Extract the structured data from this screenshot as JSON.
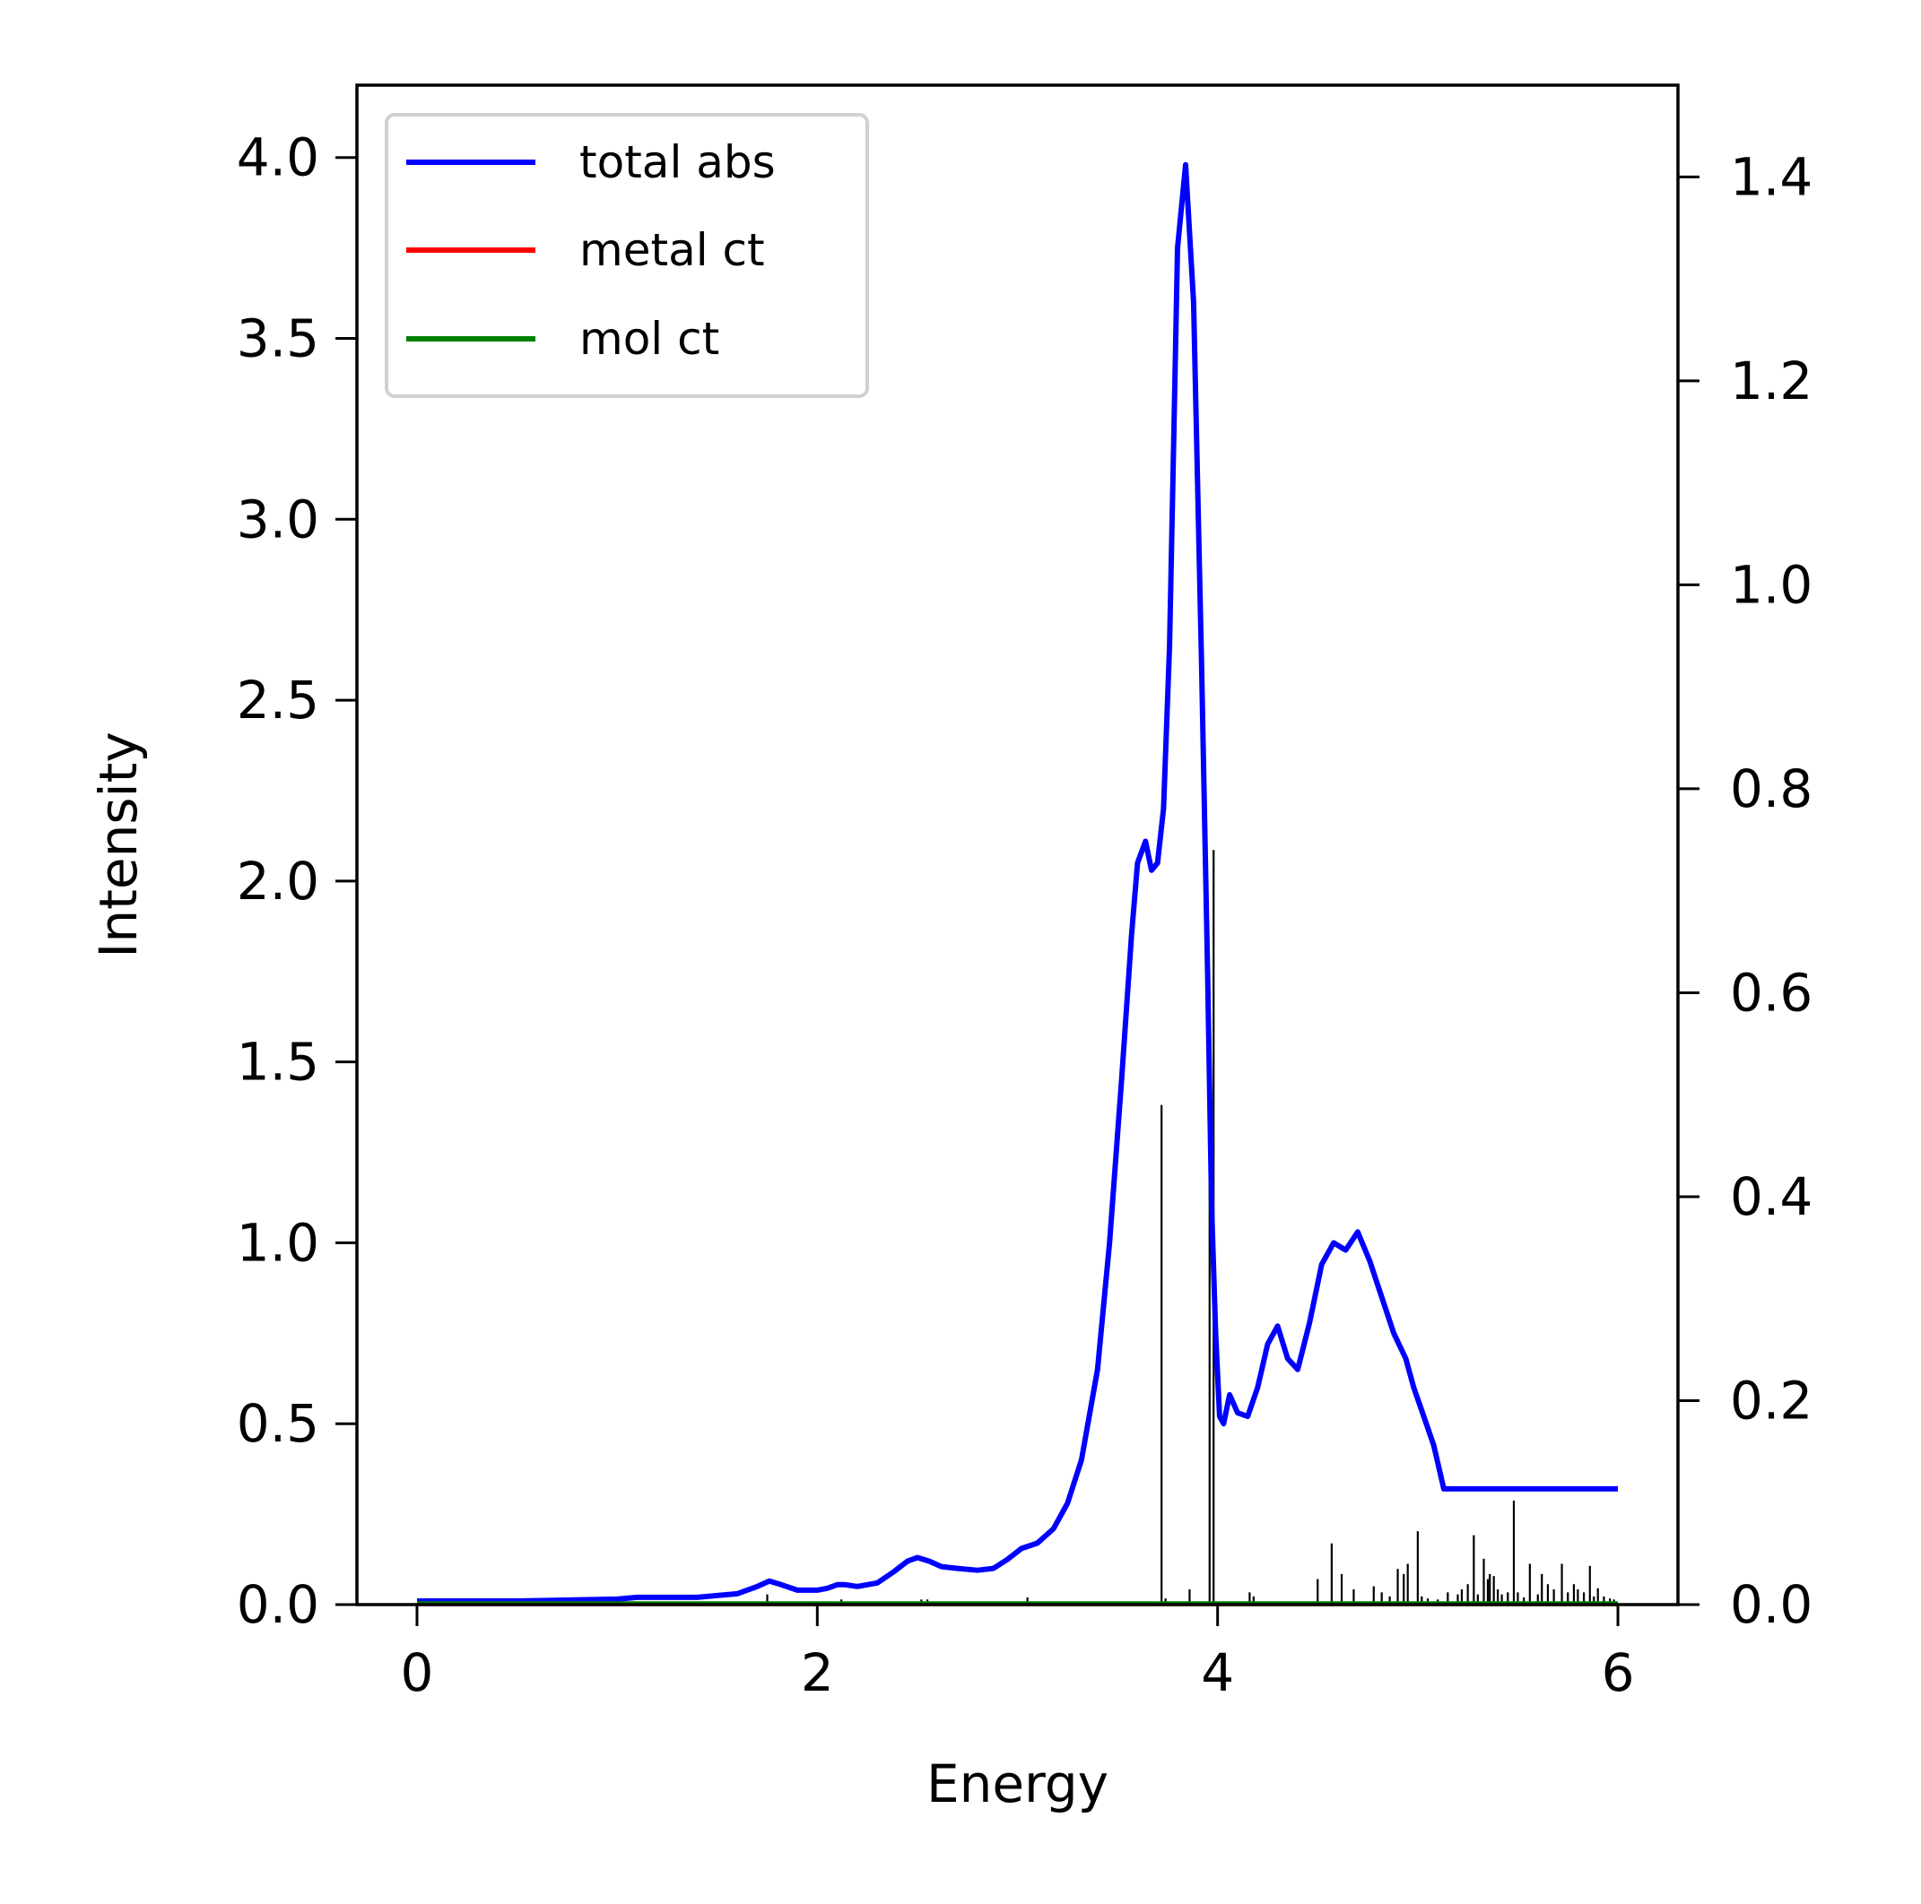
{
  "chart_data": {
    "type": "line",
    "xlabel": "Energy",
    "ylabel": "Intensity",
    "xlim": [
      -0.3,
      6.3
    ],
    "ylim": [
      0,
      4.2
    ],
    "y2lim": [
      0,
      1.49
    ],
    "xticks": [
      0,
      2,
      4,
      6
    ],
    "xtick_labels": [
      "0",
      "2",
      "4",
      "6"
    ],
    "yticks": [
      0,
      0.5,
      1.0,
      1.5,
      2.0,
      2.5,
      3.0,
      3.5,
      4.0
    ],
    "ytick_labels": [
      "0.0",
      "0.5",
      "1.0",
      "1.5",
      "2.0",
      "2.5",
      "3.0",
      "3.5",
      "4.0"
    ],
    "y2ticks": [
      0,
      0.2,
      0.4,
      0.6,
      0.8,
      1.0,
      1.2,
      1.4
    ],
    "y2tick_labels": [
      "0.0",
      "0.2",
      "0.4",
      "0.6",
      "0.8",
      "1.0",
      "1.2",
      "1.4"
    ],
    "legend": {
      "position": "top-left"
    },
    "series": [
      {
        "name": "total abs",
        "color": "#0000ff",
        "axis": "left",
        "x": [
          0,
          0.5,
          1.0,
          1.1,
          1.4,
          1.6,
          1.7,
          1.76,
          1.82,
          1.9,
          2.0,
          2.05,
          2.1,
          2.14,
          2.2,
          2.3,
          2.38,
          2.45,
          2.5,
          2.56,
          2.62,
          2.7,
          2.8,
          2.88,
          2.95,
          3.02,
          3.1,
          3.18,
          3.25,
          3.32,
          3.4,
          3.46,
          3.52,
          3.57,
          3.6,
          3.64,
          3.67,
          3.7,
          3.73,
          3.76,
          3.78,
          3.8,
          3.84,
          3.88,
          3.92,
          3.95,
          3.97,
          3.99,
          4.01,
          4.03,
          4.06,
          4.1,
          4.15,
          4.2,
          4.25,
          4.3,
          4.35,
          4.4,
          4.46,
          4.52,
          4.58,
          4.64,
          4.7,
          4.76,
          4.82,
          4.88,
          4.94,
          4.98,
          5.03,
          5.08,
          5.13,
          5.18,
          5.23,
          5.28,
          5.33,
          5.38,
          5.43,
          5.48,
          5.52,
          5.56,
          5.61,
          5.66,
          5.72,
          5.78,
          5.84,
          5.9,
          5.95,
          6.0
        ],
        "values": [
          0.01,
          0.01,
          0.015,
          0.02,
          0.02,
          0.03,
          0.05,
          0.065,
          0.055,
          0.04,
          0.04,
          0.045,
          0.055,
          0.055,
          0.05,
          0.06,
          0.09,
          0.12,
          0.13,
          0.12,
          0.105,
          0.1,
          0.095,
          0.1,
          0.125,
          0.155,
          0.17,
          0.21,
          0.28,
          0.4,
          0.65,
          1.0,
          1.45,
          1.85,
          2.05,
          2.11,
          2.03,
          2.05,
          2.2,
          2.65,
          3.2,
          3.75,
          3.98,
          3.6,
          2.6,
          1.75,
          1.1,
          0.75,
          0.52,
          0.5,
          0.58,
          0.53,
          0.52,
          0.6,
          0.72,
          0.77,
          0.68,
          0.65,
          0.78,
          0.94,
          1.0,
          0.98,
          1.03,
          0.95,
          0.85,
          0.75,
          0.68,
          0.6,
          0.52,
          0.44,
          0.32,
          0.32,
          0.32,
          0.32,
          0.32,
          0.32,
          0.32,
          0.32,
          0.32,
          0.32,
          0.32,
          0.32,
          0.32,
          0.32,
          0.32,
          0.32,
          0.32,
          0.32
        ]
      },
      {
        "name": "metal ct",
        "color": "#ff0000",
        "axis": "left",
        "x": [
          0,
          6.0
        ],
        "values": [
          0.0,
          0.0
        ]
      },
      {
        "name": "mol ct",
        "color": "#008000",
        "axis": "left",
        "x": [
          0,
          6.0
        ],
        "values": [
          0.005,
          0.005
        ]
      }
    ],
    "sticks": {
      "name": "transitions",
      "color": "#000000",
      "axis": "right",
      "x": [
        1.75,
        2.12,
        2.52,
        2.55,
        3.05,
        3.72,
        3.74,
        3.86,
        3.96,
        3.98,
        4.16,
        4.18,
        4.5,
        4.57,
        4.62,
        4.68,
        4.78,
        4.82,
        4.86,
        4.9,
        4.93,
        4.95,
        5.0,
        5.02,
        5.05,
        5.1,
        5.15,
        5.2,
        5.22,
        5.25,
        5.28,
        5.3,
        5.33,
        5.35,
        5.36,
        5.38,
        5.4,
        5.42,
        5.45,
        5.48,
        5.5,
        5.53,
        5.56,
        5.6,
        5.62,
        5.65,
        5.68,
        5.72,
        5.75,
        5.78,
        5.8,
        5.83,
        5.86,
        5.88,
        5.9,
        5.93,
        5.96,
        5.98
      ],
      "values": [
        0.01,
        0.005,
        0.005,
        0.005,
        0.007,
        0.49,
        0.006,
        0.015,
        0.53,
        0.74,
        0.012,
        0.008,
        0.025,
        0.06,
        0.03,
        0.015,
        0.018,
        0.012,
        0.008,
        0.035,
        0.03,
        0.04,
        0.072,
        0.008,
        0.006,
        0.005,
        0.012,
        0.01,
        0.015,
        0.02,
        0.068,
        0.01,
        0.045,
        0.025,
        0.03,
        0.028,
        0.015,
        0.01,
        0.012,
        0.102,
        0.012,
        0.007,
        0.04,
        0.01,
        0.03,
        0.02,
        0.015,
        0.04,
        0.012,
        0.02,
        0.015,
        0.012,
        0.038,
        0.008,
        0.016,
        0.008,
        0.006,
        0.005
      ]
    }
  }
}
